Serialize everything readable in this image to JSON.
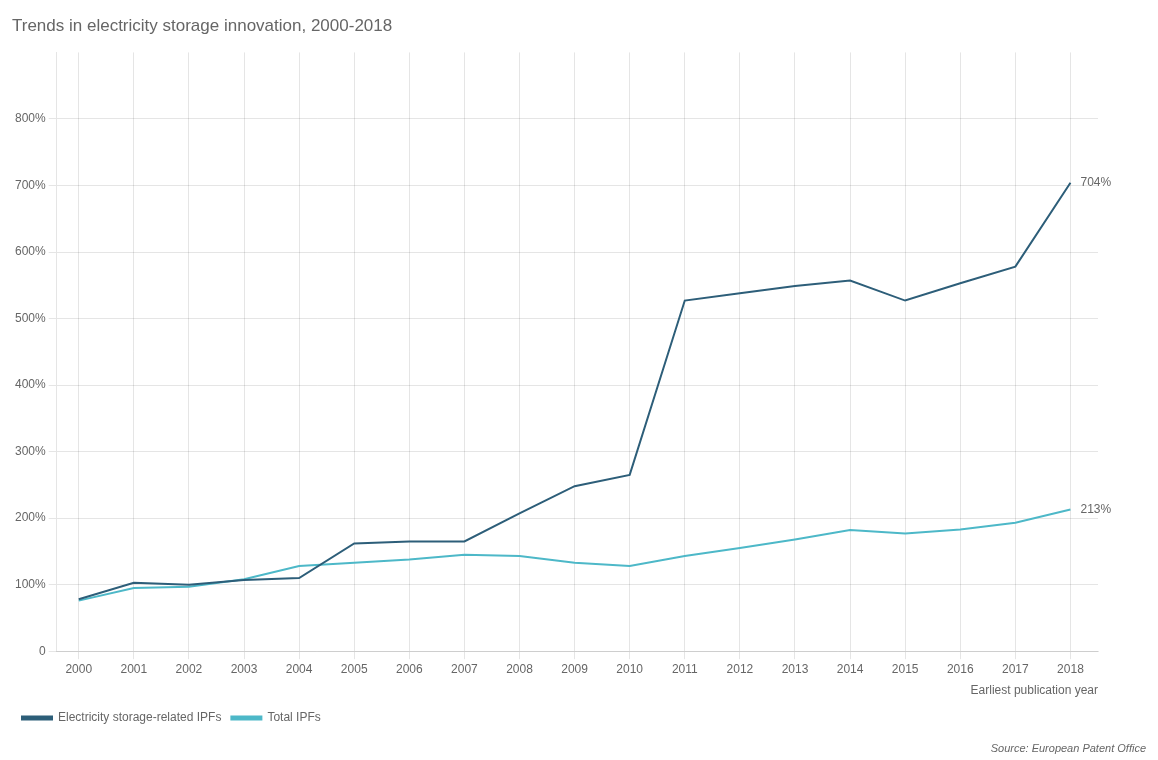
{
  "chart_data": {
    "type": "line",
    "title": "Trends in electricity storage innovation, 2000-2018",
    "xlabel": "Earliest publication year",
    "source": "Source: European Patent Office",
    "x": [
      2000,
      2001,
      2002,
      2003,
      2004,
      2005,
      2006,
      2007,
      2008,
      2009,
      2010,
      2011,
      2012,
      2013,
      2014,
      2015,
      2016,
      2017,
      2018
    ],
    "series": [
      {
        "name": "Electricity storage-related IPFs",
        "color": "#2d5e79",
        "values": [
          78,
          103,
          100,
          107,
          110,
          162,
          165,
          165,
          207,
          248,
          265,
          527,
          538,
          549,
          557,
          527,
          553,
          578,
          704
        ]
      },
      {
        "name": "Total IPFs",
        "color": "#4db8c8",
        "values": [
          76,
          95,
          97,
          108,
          128,
          133,
          138,
          145,
          143,
          133,
          128,
          143,
          155,
          168,
          182,
          177,
          183,
          193,
          213
        ]
      }
    ],
    "xlim": [
      1999.6,
      2018.5
    ],
    "xticks": [
      2000,
      2001,
      2002,
      2003,
      2004,
      2005,
      2006,
      2007,
      2008,
      2009,
      2010,
      2011,
      2012,
      2013,
      2014,
      2015,
      2016,
      2017,
      2018
    ],
    "ylim": [
      0,
      900
    ],
    "yticks": [
      0,
      {
        "value": 100,
        "label": "100%"
      },
      {
        "value": 200,
        "label": "200%"
      },
      {
        "value": 300,
        "label": "300%"
      },
      {
        "value": 400,
        "label": "400%"
      },
      {
        "value": 500,
        "label": "500%"
      },
      {
        "value": 600,
        "label": "600%"
      },
      {
        "value": 700,
        "label": "700%"
      },
      {
        "value": 800,
        "label": "800%"
      }
    ],
    "annotations": [
      {
        "text": "704%",
        "x": 2018,
        "y": 704
      },
      {
        "text": "213%",
        "x": 2018,
        "y": 213
      }
    ],
    "grid": true,
    "legend": "bottom"
  }
}
